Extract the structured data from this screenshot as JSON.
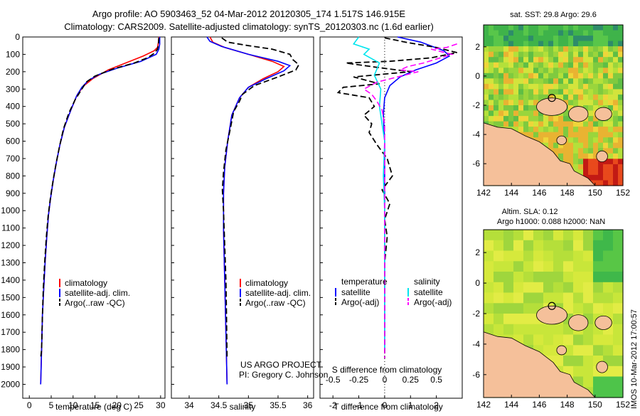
{
  "header": {
    "title_line1": "Argo profile: AO 5903463_52 04-Mar-2012 20120305_174 1.517S 146.915E",
    "title_line2": "Climatology: CARS2009. Satellite-adjusted climatology: synTS_20120303.nc (1.6d earlier)"
  },
  "footer": {
    "timestamp": "IMOS 10-Mar-2012 17:00:57"
  },
  "colors": {
    "red": "#ff0000",
    "blue": "#0000ff",
    "black": "#000000",
    "cyan": "#00e5ee",
    "magenta": "#ff00ff",
    "land": "#f5c09a",
    "sst_base": "#8ccc3a",
    "sla_base": "#b9e33a"
  },
  "chart_data": [
    {
      "id": "temperature",
      "type": "line",
      "xlabel": "temperature (deg C)",
      "xlim": [
        -1.5,
        31
      ],
      "ylim": [
        0,
        2080
      ],
      "yticks": [
        0,
        100,
        200,
        300,
        400,
        500,
        600,
        700,
        800,
        900,
        1000,
        1100,
        1200,
        1300,
        1400,
        1500,
        1600,
        1700,
        1800,
        1900,
        2000
      ],
      "xticks": [
        0,
        5,
        10,
        15,
        20,
        25,
        30
      ],
      "legend": [
        "climatology",
        "satellite-adj. clim.",
        "Argo(..raw -QC)"
      ],
      "series": [
        {
          "name": "climatology",
          "color": "red",
          "dash": "",
          "points": [
            [
              29.6,
              0
            ],
            [
              29.5,
              30
            ],
            [
              29.3,
              60
            ],
            [
              28.5,
              80
            ],
            [
              26,
              110
            ],
            [
              22,
              150
            ],
            [
              18,
              190
            ],
            [
              14.5,
              240
            ],
            [
              12.5,
              280
            ],
            [
              11,
              330
            ],
            [
              9.5,
              420
            ],
            [
              8,
              520
            ],
            [
              7,
              620
            ],
            [
              6.2,
              720
            ],
            [
              5.5,
              820
            ],
            [
              4.9,
              920
            ],
            [
              4.4,
              1020
            ],
            [
              4,
              1150
            ],
            [
              3.6,
              1300
            ],
            [
              3.3,
              1450
            ],
            [
              3,
              1600
            ],
            [
              2.8,
              1800
            ],
            [
              2.6,
              2000
            ]
          ]
        },
        {
          "name": "satellite-adj. clim.",
          "color": "blue",
          "dash": "",
          "points": [
            [
              29.8,
              0
            ],
            [
              29.8,
              40
            ],
            [
              29.6,
              70
            ],
            [
              29,
              100
            ],
            [
              25.5,
              140
            ],
            [
              20,
              180
            ],
            [
              16,
              215
            ],
            [
              13.5,
              250
            ],
            [
              12,
              290
            ],
            [
              10.8,
              340
            ],
            [
              9.5,
              420
            ],
            [
              8,
              520
            ],
            [
              7,
              620
            ],
            [
              6.2,
              720
            ],
            [
              5.5,
              820
            ],
            [
              4.9,
              920
            ],
            [
              4.4,
              1020
            ],
            [
              4,
              1150
            ],
            [
              3.6,
              1300
            ],
            [
              3.3,
              1450
            ],
            [
              3,
              1600
            ],
            [
              2.8,
              1800
            ],
            [
              2.6,
              2000
            ]
          ]
        },
        {
          "name": "Argo(..raw -QC)",
          "color": "black",
          "dash": "8,4",
          "points": [
            [
              29.6,
              5
            ],
            [
              29.5,
              40
            ],
            [
              29.3,
              70
            ],
            [
              28.5,
              95
            ],
            [
              27,
              120
            ],
            [
              24,
              150
            ],
            [
              19,
              185
            ],
            [
              15,
              225
            ],
            [
              13,
              260
            ],
            [
              12,
              300
            ],
            [
              10.5,
              360
            ],
            [
              9,
              440
            ],
            [
              7.8,
              530
            ],
            [
              6.9,
              630
            ],
            [
              6.1,
              730
            ],
            [
              5.4,
              830
            ],
            [
              4.8,
              930
            ],
            [
              4.3,
              1030
            ],
            [
              3.9,
              1150
            ],
            [
              3.5,
              1300
            ],
            [
              3.2,
              1450
            ],
            [
              3,
              1600
            ],
            [
              2.8,
              1800
            ],
            [
              2.6,
              1850
            ]
          ]
        }
      ]
    },
    {
      "id": "salinity",
      "type": "line",
      "xlabel": "salinity",
      "xlim": [
        33.7,
        36.1
      ],
      "ylim": [
        0,
        2080
      ],
      "xticks": [
        34,
        34.5,
        35,
        35.5,
        36
      ],
      "legend": [
        "climatology",
        "satellite-adj. clim.",
        "Argo(..raw -QC)"
      ],
      "annotation": [
        "US ARGO PROJECT",
        "PI: Gregory C. Johnson"
      ],
      "series": [
        {
          "name": "climatology",
          "color": "red",
          "dash": "",
          "points": [
            [
              34.35,
              0
            ],
            [
              34.4,
              30
            ],
            [
              34.6,
              60
            ],
            [
              35,
              100
            ],
            [
              35.4,
              140
            ],
            [
              35.6,
              170
            ],
            [
              35.5,
              200
            ],
            [
              35.25,
              240
            ],
            [
              35,
              290
            ],
            [
              34.85,
              350
            ],
            [
              34.72,
              450
            ],
            [
              34.65,
              600
            ],
            [
              34.6,
              750
            ],
            [
              34.58,
              900
            ],
            [
              34.58,
              1100
            ],
            [
              34.6,
              1400
            ],
            [
              34.62,
              1700
            ],
            [
              34.64,
              2000
            ]
          ]
        },
        {
          "name": "satellite-adj. clim.",
          "color": "blue",
          "dash": "",
          "points": [
            [
              34.3,
              0
            ],
            [
              34.35,
              25
            ],
            [
              34.55,
              55
            ],
            [
              35,
              100
            ],
            [
              35.5,
              140
            ],
            [
              35.7,
              165
            ],
            [
              35.6,
              195
            ],
            [
              35.3,
              240
            ],
            [
              35,
              290
            ],
            [
              34.85,
              350
            ],
            [
              34.72,
              450
            ],
            [
              34.65,
              600
            ],
            [
              34.6,
              750
            ],
            [
              34.58,
              900
            ],
            [
              34.58,
              1100
            ],
            [
              34.6,
              1400
            ],
            [
              34.62,
              1700
            ],
            [
              34.64,
              2000
            ]
          ]
        },
        {
          "name": "Argo(..raw -QC)",
          "color": "black",
          "dash": "8,4",
          "points": [
            [
              34.55,
              5
            ],
            [
              34.65,
              30
            ],
            [
              35,
              50
            ],
            [
              35.4,
              70
            ],
            [
              35.7,
              100
            ],
            [
              35.75,
              130
            ],
            [
              35.85,
              160
            ],
            [
              35.8,
              190
            ],
            [
              35.5,
              230
            ],
            [
              35.1,
              280
            ],
            [
              34.9,
              330
            ],
            [
              34.85,
              370
            ],
            [
              34.75,
              430
            ],
            [
              34.7,
              520
            ],
            [
              34.62,
              650
            ],
            [
              34.58,
              780
            ],
            [
              34.56,
              880
            ],
            [
              34.58,
              1000
            ],
            [
              34.6,
              1200
            ],
            [
              34.62,
              1400
            ],
            [
              34.63,
              1600
            ],
            [
              34.64,
              1850
            ]
          ]
        }
      ]
    },
    {
      "id": "difference",
      "type": "line",
      "xlabel": "T difference from climatology",
      "x2label": "S difference from climatology",
      "xlim": [
        -2.5,
        3
      ],
      "ylim": [
        0,
        2080
      ],
      "xticks": [
        -2,
        -1,
        0,
        1,
        2
      ],
      "x2ticks": [
        "-0.5",
        "-0.25",
        "0",
        "0.25",
        "0.5"
      ],
      "legend_t_title": "temperature",
      "legend_s_title": "salinity",
      "legend": [
        "satellite",
        "Argo(-adj)",
        "satellite",
        "Argo(-adj)"
      ],
      "series": [
        {
          "name": "satellite",
          "group": "temperature",
          "color": "blue",
          "dash": "",
          "points": [
            [
              0.5,
              0
            ],
            [
              1.4,
              30
            ],
            [
              2.3,
              80
            ],
            [
              2.5,
              110
            ],
            [
              2,
              150
            ],
            [
              1.2,
              190
            ],
            [
              0.6,
              230
            ],
            [
              0.2,
              280
            ],
            [
              0,
              350
            ],
            [
              -0.05,
              450
            ],
            [
              0,
              600
            ],
            [
              0,
              1000
            ],
            [
              0,
              1400
            ],
            [
              0,
              1800
            ]
          ]
        },
        {
          "name": "Argo(-adj)",
          "group": "temperature",
          "color": "black",
          "dash": "8,4",
          "points": [
            [
              0,
              5
            ],
            [
              0.8,
              30
            ],
            [
              2,
              60
            ],
            [
              2.8,
              90
            ],
            [
              1.8,
              120
            ],
            [
              0.2,
              140
            ],
            [
              -1.5,
              150
            ],
            [
              -0.3,
              175
            ],
            [
              1,
              200
            ],
            [
              -1.2,
              230
            ],
            [
              -0.2,
              270
            ],
            [
              -1.6,
              290
            ],
            [
              -1.8,
              320
            ],
            [
              -0.6,
              350
            ],
            [
              -0.4,
              400
            ],
            [
              -0.8,
              450
            ],
            [
              -0.5,
              500
            ],
            [
              -0.6,
              550
            ],
            [
              -0.3,
              620
            ],
            [
              0.1,
              700
            ],
            [
              0.3,
              800
            ],
            [
              -0.1,
              880
            ],
            [
              0.2,
              960
            ],
            [
              0,
              1050
            ],
            [
              0.1,
              1150
            ],
            [
              0,
              1300
            ],
            [
              0,
              1500
            ],
            [
              0,
              1850
            ]
          ]
        },
        {
          "name": "satellite",
          "group": "salinity",
          "color": "cyan",
          "dash": "",
          "points": [
            [
              -1,
              0
            ],
            [
              -1.2,
              40
            ],
            [
              -0.6,
              70
            ],
            [
              -0.8,
              100
            ],
            [
              -0.2,
              150
            ],
            [
              -0.4,
              220
            ],
            [
              -0.15,
              300
            ],
            [
              -0.2,
              400
            ],
            [
              0,
              600
            ],
            [
              -0.05,
              800
            ],
            [
              0,
              1000
            ],
            [
              0,
              1400
            ],
            [
              0,
              1800
            ]
          ]
        },
        {
          "name": "Argo(-adj)",
          "group": "salinity",
          "color": "magenta",
          "dash": "8,4",
          "points": [
            [
              2.8,
              40
            ],
            [
              2.4,
              60
            ],
            [
              1.8,
              70
            ],
            [
              2.6,
              100
            ],
            [
              1.5,
              150
            ],
            [
              0.9,
              170
            ],
            [
              0.6,
              190
            ],
            [
              1.3,
              200
            ],
            [
              0.5,
              230
            ],
            [
              -0.3,
              260
            ],
            [
              -0.8,
              300
            ],
            [
              -0.5,
              330
            ],
            [
              -0.3,
              370
            ],
            [
              -0.1,
              420
            ],
            [
              0,
              500
            ],
            [
              0,
              1000
            ],
            [
              0,
              1500
            ],
            [
              0,
              1780
            ],
            [
              0,
              1850
            ]
          ]
        }
      ]
    },
    {
      "id": "sst_map",
      "type": "heatmap",
      "title": "sat. SST: 29.8 Argo: 29.6",
      "xticks": [
        142,
        144,
        146,
        148,
        150,
        152
      ],
      "yticks": [
        2,
        0,
        -2,
        -4,
        -6
      ],
      "xlim": [
        142,
        152
      ],
      "ylim": [
        -7.5,
        3.5
      ],
      "marker": [
        146.9,
        -1.5
      ]
    },
    {
      "id": "sla_map",
      "type": "heatmap",
      "title_line1": "Altim. SLA: 0.12",
      "title_line2": "Argo h1000: 0.088 h2000: NaN",
      "xticks": [
        142,
        144,
        146,
        148,
        150,
        152
      ],
      "yticks": [
        2,
        0,
        -2,
        -4,
        -6
      ],
      "xlim": [
        142,
        152
      ],
      "ylim": [
        -7.5,
        3.5
      ],
      "marker": [
        146.9,
        -1.5
      ]
    }
  ]
}
